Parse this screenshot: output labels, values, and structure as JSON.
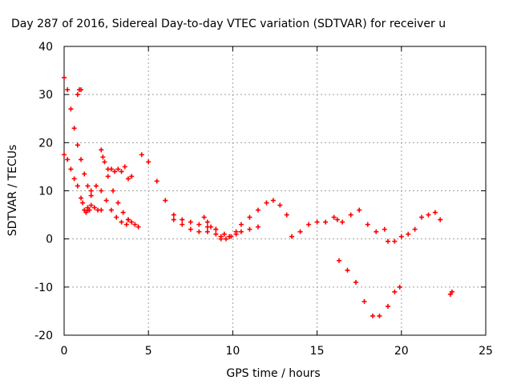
{
  "chart_data": {
    "type": "scatter",
    "title": "Day 287 of 2016, Sidereal Day-to-day VTEC variation (SDTVAR) for receiver u",
    "xlabel": "GPS time / hours",
    "ylabel": "SDTVAR / TECUs",
    "xlim": [
      0,
      25
    ],
    "ylim": [
      -20,
      40
    ],
    "xticks": [
      "0",
      "5",
      "10",
      "15",
      "20",
      "25"
    ],
    "yticks": [
      "-20",
      "-10",
      "0",
      "10",
      "20",
      "30",
      "40"
    ],
    "grid": true,
    "marker": "plus",
    "color": "#ff0000",
    "series": [
      {
        "x": [
          0.0,
          0.2,
          0.4,
          0.6,
          0.8,
          1.0,
          1.2,
          1.4,
          1.6
        ],
        "y": [
          33.5,
          31,
          27,
          23,
          19.5,
          16.5,
          13.5,
          11,
          9
        ]
      },
      {
        "x": [
          0.8,
          0.9,
          1.0
        ],
        "y": [
          30,
          31,
          31
        ]
      },
      {
        "x": [
          0.0,
          0.2,
          0.4,
          0.6,
          0.8,
          1.0,
          1.1,
          1.2,
          1.3,
          1.4,
          1.5
        ],
        "y": [
          17.5,
          16.5,
          14.5,
          12.5,
          11,
          8.5,
          7.5,
          6,
          5.5,
          6,
          6
        ]
      },
      {
        "x": [
          1.4,
          1.6,
          1.8,
          2.0,
          2.2
        ],
        "y": [
          6.5,
          7,
          6.5,
          6,
          6
        ]
      },
      {
        "x": [
          1.6,
          1.9,
          2.2,
          2.5,
          2.8,
          3.1,
          3.4,
          3.7
        ],
        "y": [
          10,
          11,
          10,
          8,
          6,
          4.5,
          3.5,
          3
        ]
      },
      {
        "x": [
          2.2,
          2.4,
          2.6,
          2.8,
          3.0,
          3.2,
          3.4,
          3.6
        ],
        "y": [
          18.5,
          16,
          14.5,
          14.5,
          14,
          14.5,
          14,
          15
        ]
      },
      {
        "x": [
          2.3,
          2.6,
          2.9,
          3.2,
          3.5,
          3.8
        ],
        "y": [
          17,
          13,
          10,
          7.5,
          5.5,
          4
        ]
      },
      {
        "x": [
          3.8,
          4.0
        ],
        "y": [
          12.5,
          13
        ]
      },
      {
        "x": [
          3.8,
          4.0,
          4.2,
          4.4
        ],
        "y": [
          4,
          3.5,
          3,
          2.5
        ]
      },
      {
        "x": [
          4.6,
          5.0,
          5.5,
          6.0,
          6.5,
          7.0,
          7.5,
          8.0,
          8.5,
          9.0,
          9.5,
          9.8
        ],
        "y": [
          17.5,
          16,
          12,
          8,
          5,
          4,
          3.5,
          3,
          2.5,
          2,
          1,
          0.5
        ]
      },
      {
        "x": [
          6.5,
          7.0,
          7.5,
          8.0,
          8.5,
          9.0,
          9.3
        ],
        "y": [
          4,
          3,
          2,
          1.5,
          1.5,
          1,
          0.5
        ]
      },
      {
        "x": [
          8.3,
          8.5,
          8.7,
          9.0
        ],
        "y": [
          4.5,
          3.5,
          2.5,
          2
        ]
      },
      {
        "x": [
          9.3,
          9.6,
          9.9,
          10.2,
          10.5,
          11.0,
          11.5,
          12.0,
          12.4,
          12.8,
          13.2
        ],
        "y": [
          0,
          0,
          0.5,
          1.5,
          3,
          4.5,
          6,
          7.5,
          8,
          7,
          5
        ]
      },
      {
        "x": [
          10.2,
          10.5,
          11.0,
          11.5
        ],
        "y": [
          1,
          1.5,
          2,
          2.5
        ]
      },
      {
        "x": [
          13.5,
          14.0,
          14.5,
          15.0,
          15.5,
          16.0,
          16.2,
          16.5,
          17.0,
          17.5,
          18.0,
          18.5,
          19.0
        ],
        "y": [
          0.5,
          1.5,
          3,
          3.5,
          3.5,
          4.5,
          4,
          3.5,
          5,
          6,
          3,
          1.5,
          2
        ]
      },
      {
        "x": [
          16.3,
          16.8,
          17.3,
          17.8,
          18.3,
          18.7,
          19.2,
          19.6,
          19.9
        ],
        "y": [
          -4.5,
          -6.5,
          -9,
          -13,
          -16,
          -16,
          -14,
          -11,
          -10
        ]
      },
      {
        "x": [
          19.2,
          19.6,
          20.0,
          20.4,
          20.8,
          21.2,
          21.6,
          22.0,
          22.3
        ],
        "y": [
          -0.5,
          -0.5,
          0.5,
          1,
          2,
          4.5,
          5,
          5.5,
          4
        ]
      },
      {
        "x": [
          22.9,
          23.0
        ],
        "y": [
          -11.5,
          -11
        ]
      }
    ]
  }
}
